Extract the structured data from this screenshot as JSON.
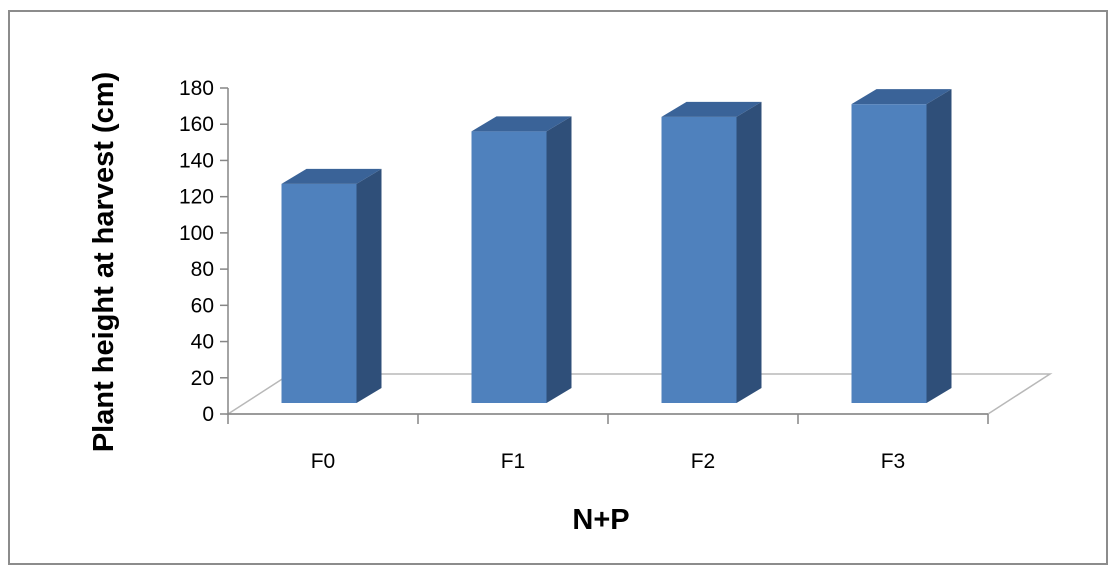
{
  "chart_data": {
    "type": "bar",
    "style": "3d-column",
    "categories": [
      "F0",
      "F1",
      "F2",
      "F3"
    ],
    "values": [
      121,
      150,
      158,
      165
    ],
    "xlabel": "N+P",
    "ylabel": "Plant height at harvest (cm)",
    "ylim": [
      0,
      180
    ],
    "yticks": [
      0,
      20,
      40,
      60,
      80,
      100,
      120,
      140,
      160,
      180
    ],
    "grid": false,
    "legend": "none",
    "colors": {
      "bar_front": "#4F81BD",
      "bar_side": "#2F4F79",
      "bar_top": "#3A6398"
    }
  }
}
